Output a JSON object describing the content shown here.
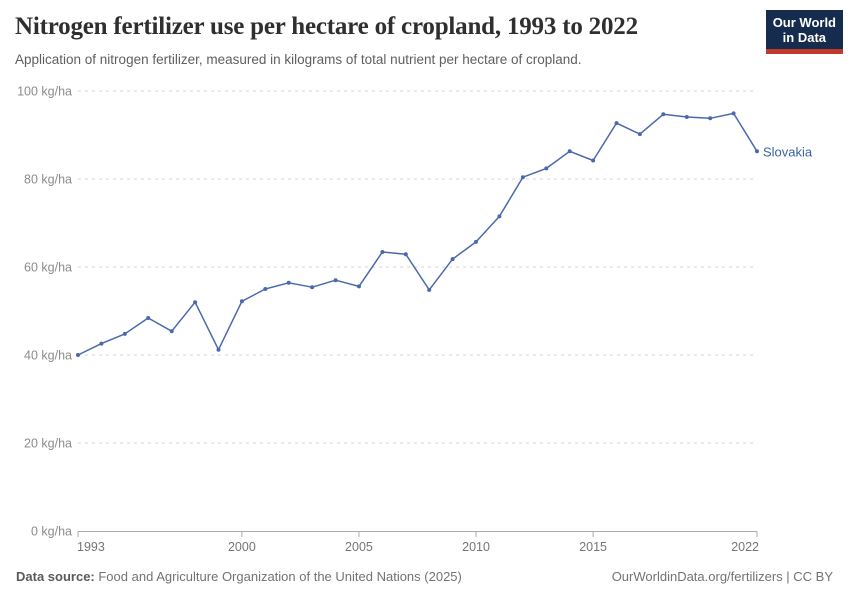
{
  "header": {
    "title": "Nitrogen fertilizer use per hectare of cropland, 1993 to 2022",
    "subtitle": "Application of nitrogen fertilizer, measured in kilograms of total nutrient per hectare of cropland.",
    "logo_line1": "Our World",
    "logo_line2": "in Data"
  },
  "colors": {
    "line": "#4a69ad",
    "end_label": "#3d619e",
    "logo_navy": "#152c4e",
    "logo_red": "#c0392b",
    "gridline": "#d6d6d6",
    "axis": "#ababab",
    "y_tick_text": "#8c8c8c",
    "x_tick_text": "#757575"
  },
  "chart_data": {
    "type": "line",
    "title": "Nitrogen fertilizer use per hectare of cropland, 1993 to 2022",
    "subtitle": "Application of nitrogen fertilizer, measured in kilograms of total nutrient per hectare of cropland.",
    "xlabel": "",
    "ylabel": "kg/ha",
    "xlim": [
      1993,
      2022
    ],
    "ylim": [
      0,
      100
    ],
    "grid": "horizontal-dashed",
    "legend_position": "end-of-line-label",
    "xticks": [
      1993,
      2000,
      2005,
      2010,
      2015,
      2022
    ],
    "yticks": [
      {
        "value": 0,
        "label": "0 kg/ha"
      },
      {
        "value": 20,
        "label": "20 kg/ha"
      },
      {
        "value": 40,
        "label": "40 kg/ha"
      },
      {
        "value": 60,
        "label": "60 kg/ha"
      },
      {
        "value": 80,
        "label": "80 kg/ha"
      },
      {
        "value": 100,
        "label": "100 kg/ha"
      }
    ],
    "series": [
      {
        "name": "Slovakia",
        "x": [
          1993,
          1994,
          1995,
          1996,
          1997,
          1998,
          1999,
          2000,
          2001,
          2002,
          2003,
          2004,
          2005,
          2006,
          2007,
          2008,
          2009,
          2010,
          2011,
          2012,
          2013,
          2014,
          2015,
          2016,
          2017,
          2018,
          2019,
          2020,
          2021,
          2022
        ],
        "values": [
          40,
          42.6,
          44.8,
          48.4,
          45.4,
          52,
          41.2,
          52.2,
          55,
          56.4,
          55.4,
          57,
          55.6,
          63.4,
          62.9,
          54.8,
          61.8,
          65.7,
          71.5,
          80.4,
          82.4,
          86.3,
          84.2,
          92.7,
          90.2,
          94.7,
          94.1,
          93.8,
          94.9,
          86.3
        ]
      }
    ]
  },
  "footer": {
    "source_label": "Data source:",
    "source_text": " Food and Agriculture Organization of the United Nations (2025)",
    "right_text": "OurWorldinData.org/fertilizers | CC BY"
  }
}
